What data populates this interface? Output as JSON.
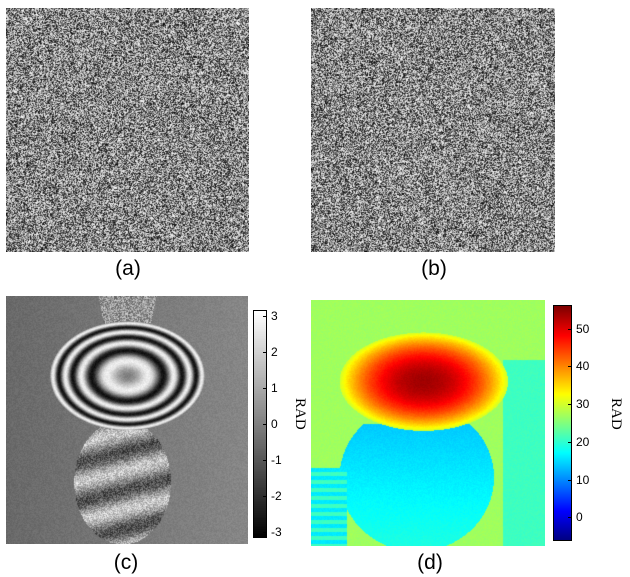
{
  "panels": {
    "a": {
      "caption": "(a)",
      "type": "speckle-noise"
    },
    "b": {
      "caption": "(b)",
      "type": "speckle-noise"
    },
    "c": {
      "caption": "(c)",
      "type": "wrapped-phase-map",
      "colormap": "grayscale"
    },
    "d": {
      "caption": "(d)",
      "type": "unwrapped-phase-map",
      "colormap": "jet"
    }
  },
  "colorbar_c": {
    "label": "RAD",
    "ticks": [
      "3",
      "2",
      "1",
      "0",
      "-1",
      "-2",
      "-3"
    ],
    "range": [
      -3.14,
      3.14
    ]
  },
  "colorbar_d": {
    "label": "RAD",
    "ticks": [
      "50",
      "40",
      "30",
      "20",
      "10",
      "0"
    ],
    "range": [
      -6,
      56
    ]
  },
  "colors": {
    "background": "#ffffff",
    "panel_d_field": "#8fe38a",
    "panel_d_side": "#33d0e0"
  }
}
